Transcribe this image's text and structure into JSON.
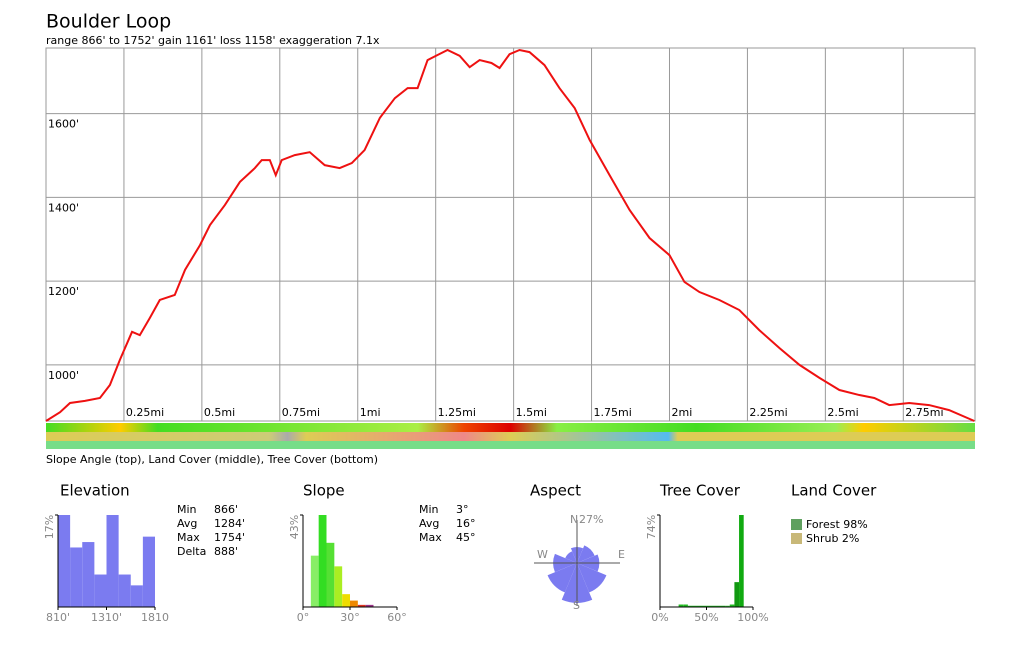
{
  "chart_data": [
    {
      "type": "line",
      "title": "Boulder Loop",
      "subtitle": "range 866' to 1752'  gain 1161'  loss 1158'  exaggeration 7.1x",
      "caption": "Slope Angle (top), Land Cover (middle), Tree Cover (bottom)",
      "color": "#ee1111",
      "grid": true,
      "xlim": [
        0,
        2.98
      ],
      "ylim": [
        866,
        1752
      ],
      "xticks": [
        {
          "value": 0.25,
          "label": "0.25mi"
        },
        {
          "value": 0.5,
          "label": "0.5mi"
        },
        {
          "value": 0.75,
          "label": "0.75mi"
        },
        {
          "value": 1,
          "label": "1mi"
        },
        {
          "value": 1.25,
          "label": "1.25mi"
        },
        {
          "value": 1.5,
          "label": "1.5mi"
        },
        {
          "value": 1.75,
          "label": "1.75mi"
        },
        {
          "value": 2,
          "label": "2mi"
        },
        {
          "value": 2.25,
          "label": "2.25mi"
        },
        {
          "value": 2.5,
          "label": "2.5mi"
        },
        {
          "value": 2.75,
          "label": "2.75mi"
        }
      ],
      "yticks": [
        {
          "value": 1000,
          "label": "1000'"
        },
        {
          "value": 1200,
          "label": "1200'"
        },
        {
          "value": 1400,
          "label": "1400'"
        },
        {
          "value": 1600,
          "label": "1600'"
        }
      ],
      "x": [
        0,
        0.045,
        0.077,
        0.125,
        0.173,
        0.205,
        0.237,
        0.276,
        0.301,
        0.333,
        0.365,
        0.413,
        0.446,
        0.494,
        0.526,
        0.574,
        0.622,
        0.67,
        0.692,
        0.718,
        0.737,
        0.756,
        0.798,
        0.846,
        0.894,
        0.942,
        0.981,
        1.022,
        1.071,
        1.119,
        1.16,
        1.192,
        1.224,
        1.256,
        1.288,
        1.327,
        1.359,
        1.391,
        1.429,
        1.455,
        1.487,
        1.519,
        1.551,
        1.599,
        1.647,
        1.696,
        1.744,
        1.808,
        1.872,
        1.936,
        2.0,
        2.048,
        2.096,
        2.16,
        2.224,
        2.288,
        2.353,
        2.417,
        2.481,
        2.545,
        2.609,
        2.657,
        2.705,
        2.769,
        2.833,
        2.897,
        2.978
      ],
      "values": [
        866,
        887,
        909,
        914,
        921,
        952,
        1012,
        1079,
        1071,
        1112,
        1155,
        1167,
        1227,
        1286,
        1334,
        1382,
        1437,
        1470,
        1489,
        1489,
        1453,
        1489,
        1501,
        1508,
        1477,
        1470,
        1482,
        1513,
        1590,
        1637,
        1661,
        1661,
        1728,
        1740,
        1752,
        1738,
        1711,
        1728,
        1721,
        1709,
        1742,
        1752,
        1747,
        1716,
        1661,
        1613,
        1537,
        1453,
        1370,
        1303,
        1262,
        1198,
        1174,
        1155,
        1131,
        1083,
        1040,
        1000,
        969,
        940,
        928,
        921,
        904,
        909,
        904,
        892,
        866
      ]
    },
    {
      "type": "histogram",
      "title": "Elevation",
      "color": "#7b7bf0",
      "bins": [
        810,
        935,
        1060,
        1185,
        1310,
        1435,
        1560,
        1685,
        1810
      ],
      "values": [
        17,
        11,
        12,
        6,
        17,
        6,
        4,
        13
      ],
      "xlim": [
        810,
        1810
      ],
      "xticks": [
        {
          "value": 810,
          "label": "810'"
        },
        {
          "value": 1310,
          "label": "1310'"
        },
        {
          "value": 1810,
          "label": "1810"
        }
      ],
      "ylim": [
        0,
        17
      ],
      "yticks": [
        {
          "value": 17,
          "label": "17%"
        }
      ],
      "stats": [
        [
          "Min",
          "866'"
        ],
        [
          "Avg",
          "1284'"
        ],
        [
          "Max",
          "1754'"
        ],
        [
          "Delta",
          "888'"
        ]
      ]
    },
    {
      "type": "histogram",
      "title": "Slope",
      "bins": [
        5,
        10,
        15,
        20,
        25,
        30,
        35,
        40,
        45
      ],
      "values": [
        24,
        43,
        30,
        19,
        6,
        3,
        1,
        1
      ],
      "colors": [
        "#88ee66",
        "#33dd22",
        "#55e033",
        "#aaee22",
        "#eedd00",
        "#ee8800",
        "#dd3322",
        "#993388"
      ],
      "xlim": [
        0,
        60
      ],
      "xticks": [
        {
          "value": 0,
          "label": "0°"
        },
        {
          "value": 30,
          "label": "30°"
        },
        {
          "value": 60,
          "label": "60°"
        }
      ],
      "ylim": [
        0,
        43
      ],
      "yticks": [
        {
          "value": 43,
          "label": "43%"
        }
      ],
      "stats": [
        [
          "Min",
          "3°"
        ],
        [
          "Avg",
          "16°"
        ],
        [
          "Max",
          "45°"
        ]
      ]
    },
    {
      "type": "rose",
      "title": "Aspect",
      "color": "#7b7bf0",
      "directions": [
        "N",
        "NE",
        "E",
        "SE",
        "S",
        "SW",
        "W",
        "NW"
      ],
      "values": [
        10,
        12,
        14,
        20,
        25,
        20,
        15,
        8
      ],
      "compass": [
        "N",
        "E",
        "S",
        "W"
      ],
      "rmax": {
        "value": 27,
        "label": "27%"
      }
    },
    {
      "type": "histogram",
      "title": "Tree Cover",
      "bins": [
        20,
        25,
        30,
        70,
        75,
        80,
        85,
        90
      ],
      "values": [
        2,
        2,
        1,
        1,
        2,
        20,
        74
      ],
      "colors": [
        "#22bb22",
        "#22bb22",
        "#22bb22",
        "#33cc33",
        "#22bb22",
        "#119911",
        "#11aa11"
      ],
      "xlim": [
        0,
        100
      ],
      "xticks": [
        {
          "value": 0,
          "label": "0%"
        },
        {
          "value": 50,
          "label": "50%"
        },
        {
          "value": 100,
          "label": "100%"
        }
      ],
      "ylim": [
        0,
        74
      ],
      "yticks": [
        {
          "value": 74,
          "label": "74%"
        }
      ]
    },
    {
      "type": "legend",
      "title": "Land Cover",
      "items": [
        {
          "label": "Forest 98%",
          "color": "#5fa05f"
        },
        {
          "label": "Shrub 2%",
          "color": "#c8b878"
        }
      ]
    }
  ]
}
